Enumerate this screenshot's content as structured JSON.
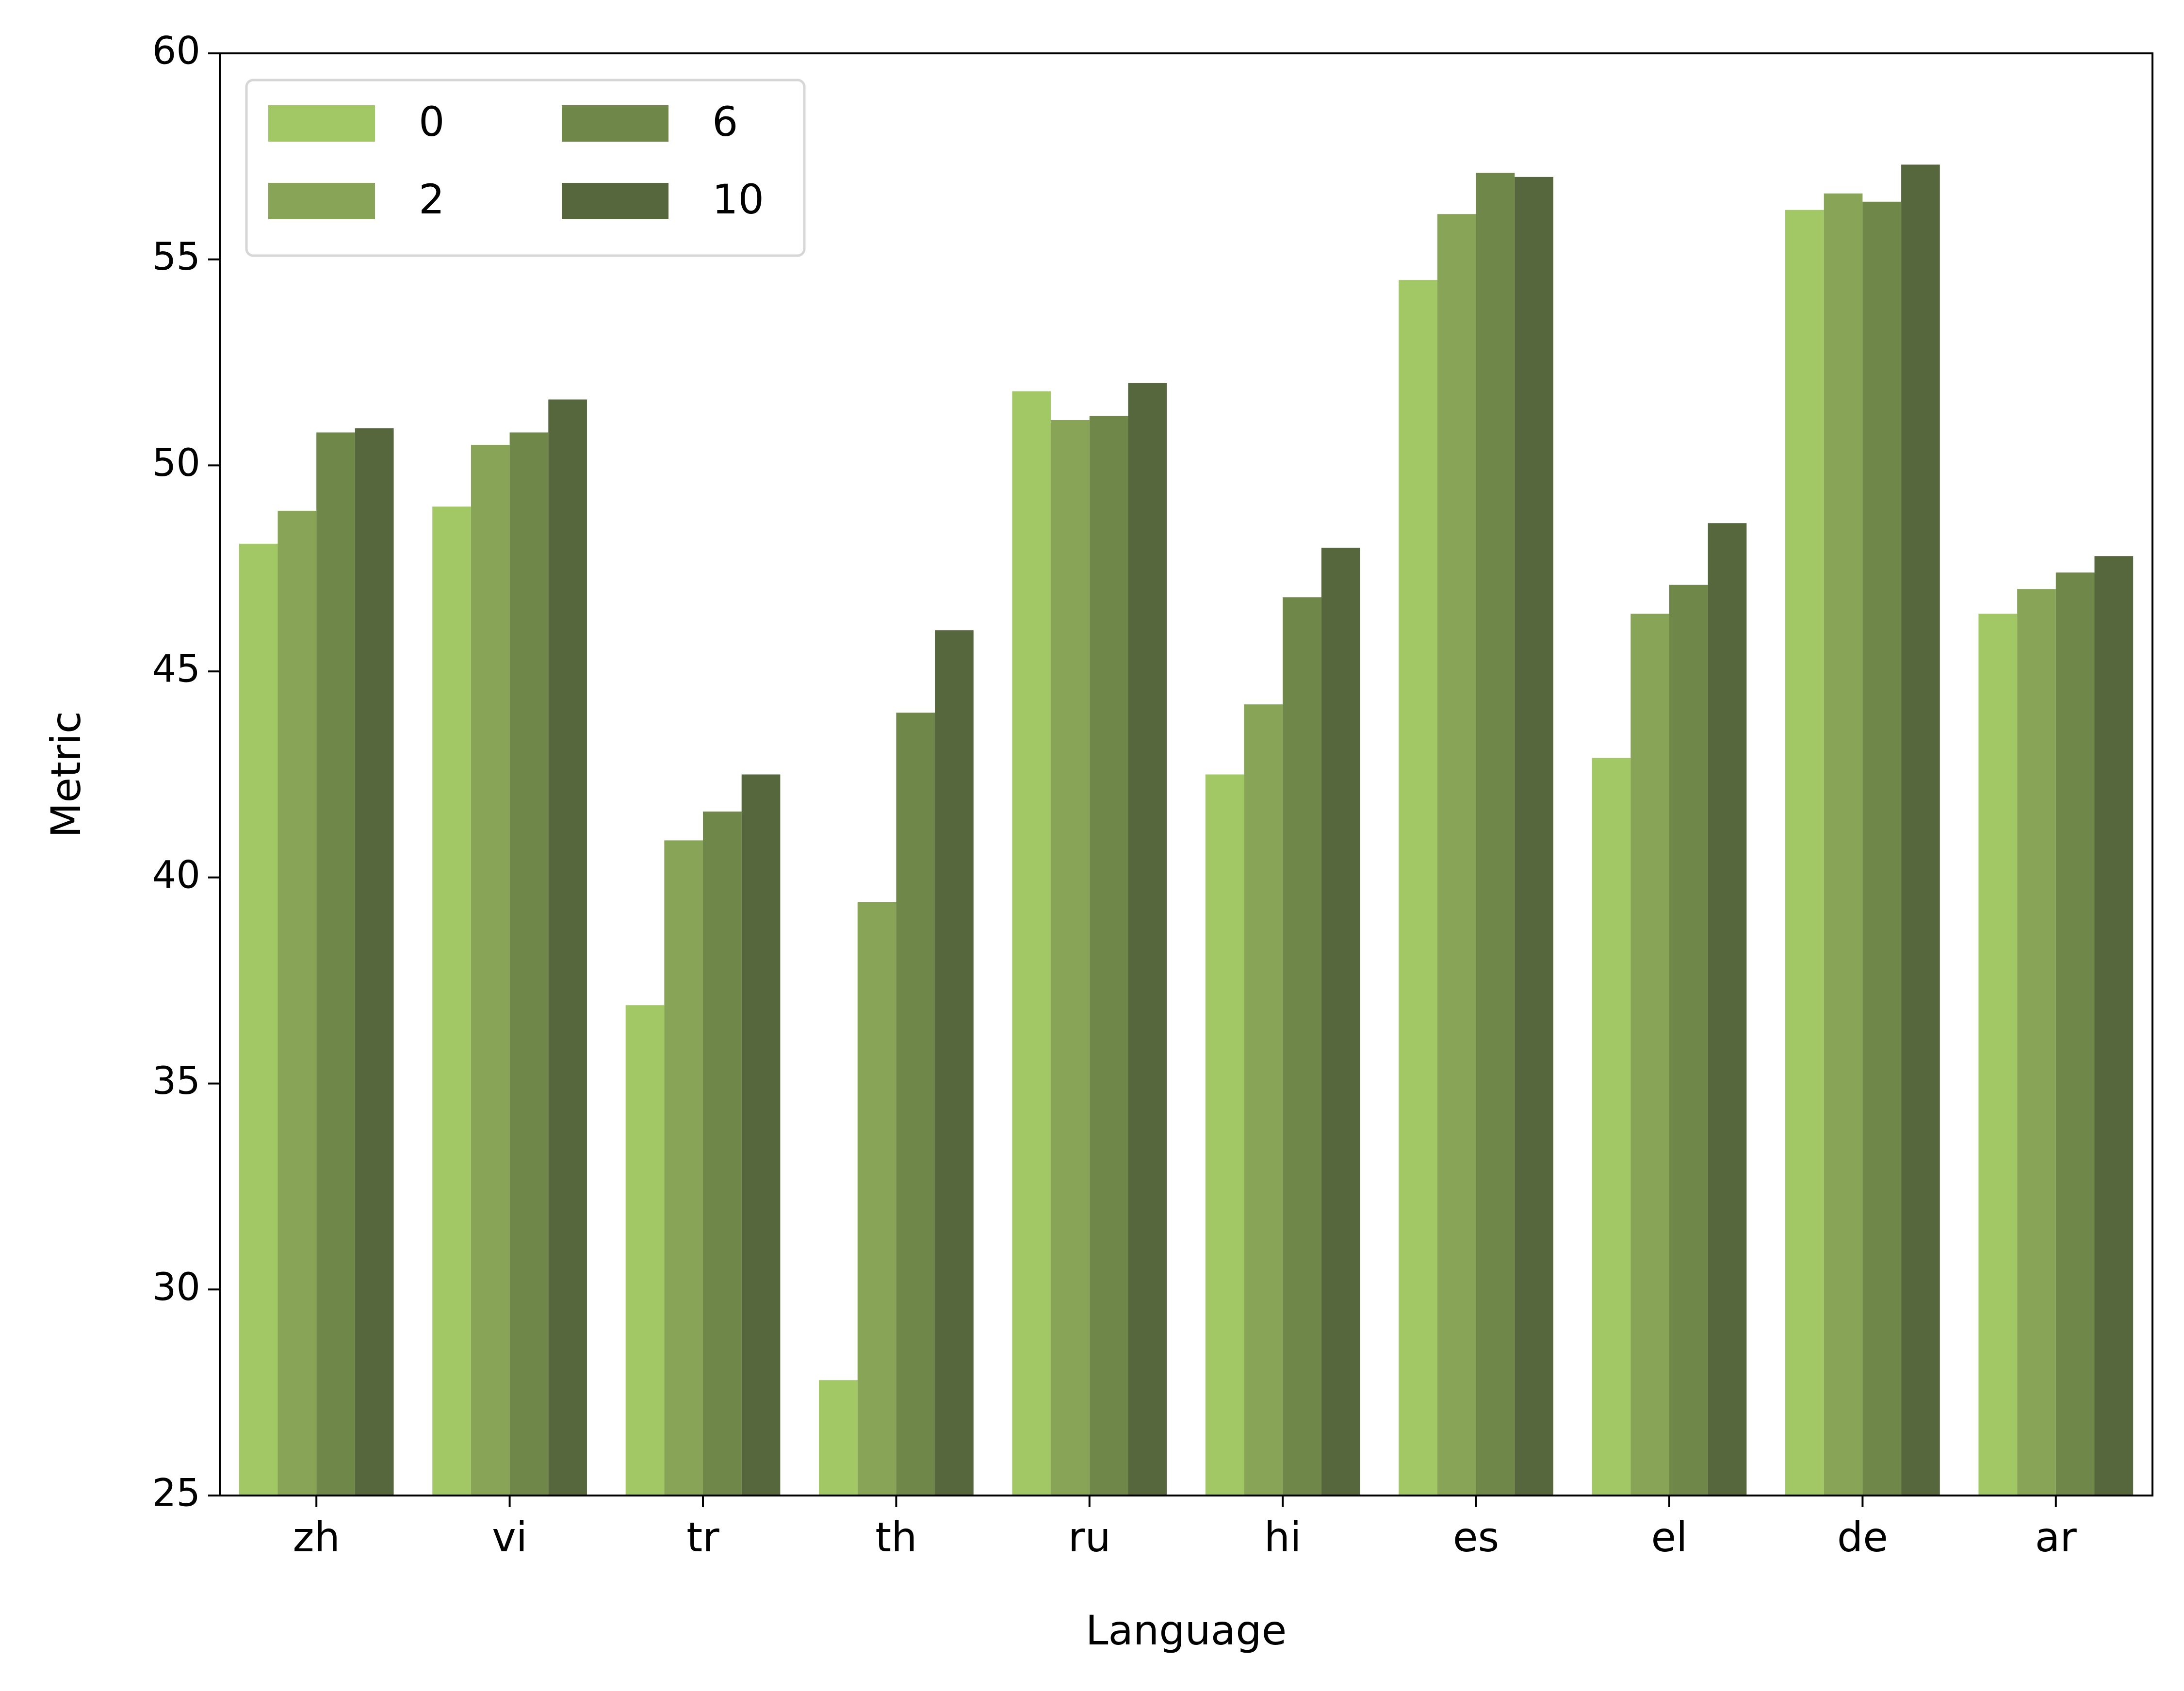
{
  "chart_data": {
    "type": "bar",
    "title": "",
    "xlabel": "Language",
    "ylabel": "Metric",
    "ylim": [
      25,
      60
    ],
    "yticks": [
      25,
      30,
      35,
      40,
      45,
      50,
      55,
      60
    ],
    "grid": false,
    "legend": {
      "placement": "top-left",
      "columns": 2
    },
    "categories": [
      "zh",
      "vi",
      "tr",
      "th",
      "ru",
      "hi",
      "es",
      "el",
      "de",
      "ar"
    ],
    "series": [
      {
        "name": "0",
        "color": "#a2c865",
        "values": [
          48.1,
          49.0,
          36.9,
          27.8,
          51.8,
          42.5,
          54.5,
          42.9,
          56.2,
          46.4
        ]
      },
      {
        "name": "2",
        "color": "#88a557",
        "values": [
          48.9,
          50.5,
          40.9,
          39.4,
          51.1,
          44.2,
          56.1,
          46.4,
          56.6,
          47.0
        ]
      },
      {
        "name": "6",
        "color": "#70874a",
        "values": [
          50.8,
          50.8,
          41.6,
          44.0,
          51.2,
          46.8,
          57.1,
          47.1,
          56.4,
          47.4
        ]
      },
      {
        "name": "10",
        "color": "#56673d",
        "values": [
          50.9,
          51.6,
          42.5,
          46.0,
          52.0,
          48.0,
          57.0,
          48.6,
          57.3,
          47.8
        ]
      }
    ]
  }
}
